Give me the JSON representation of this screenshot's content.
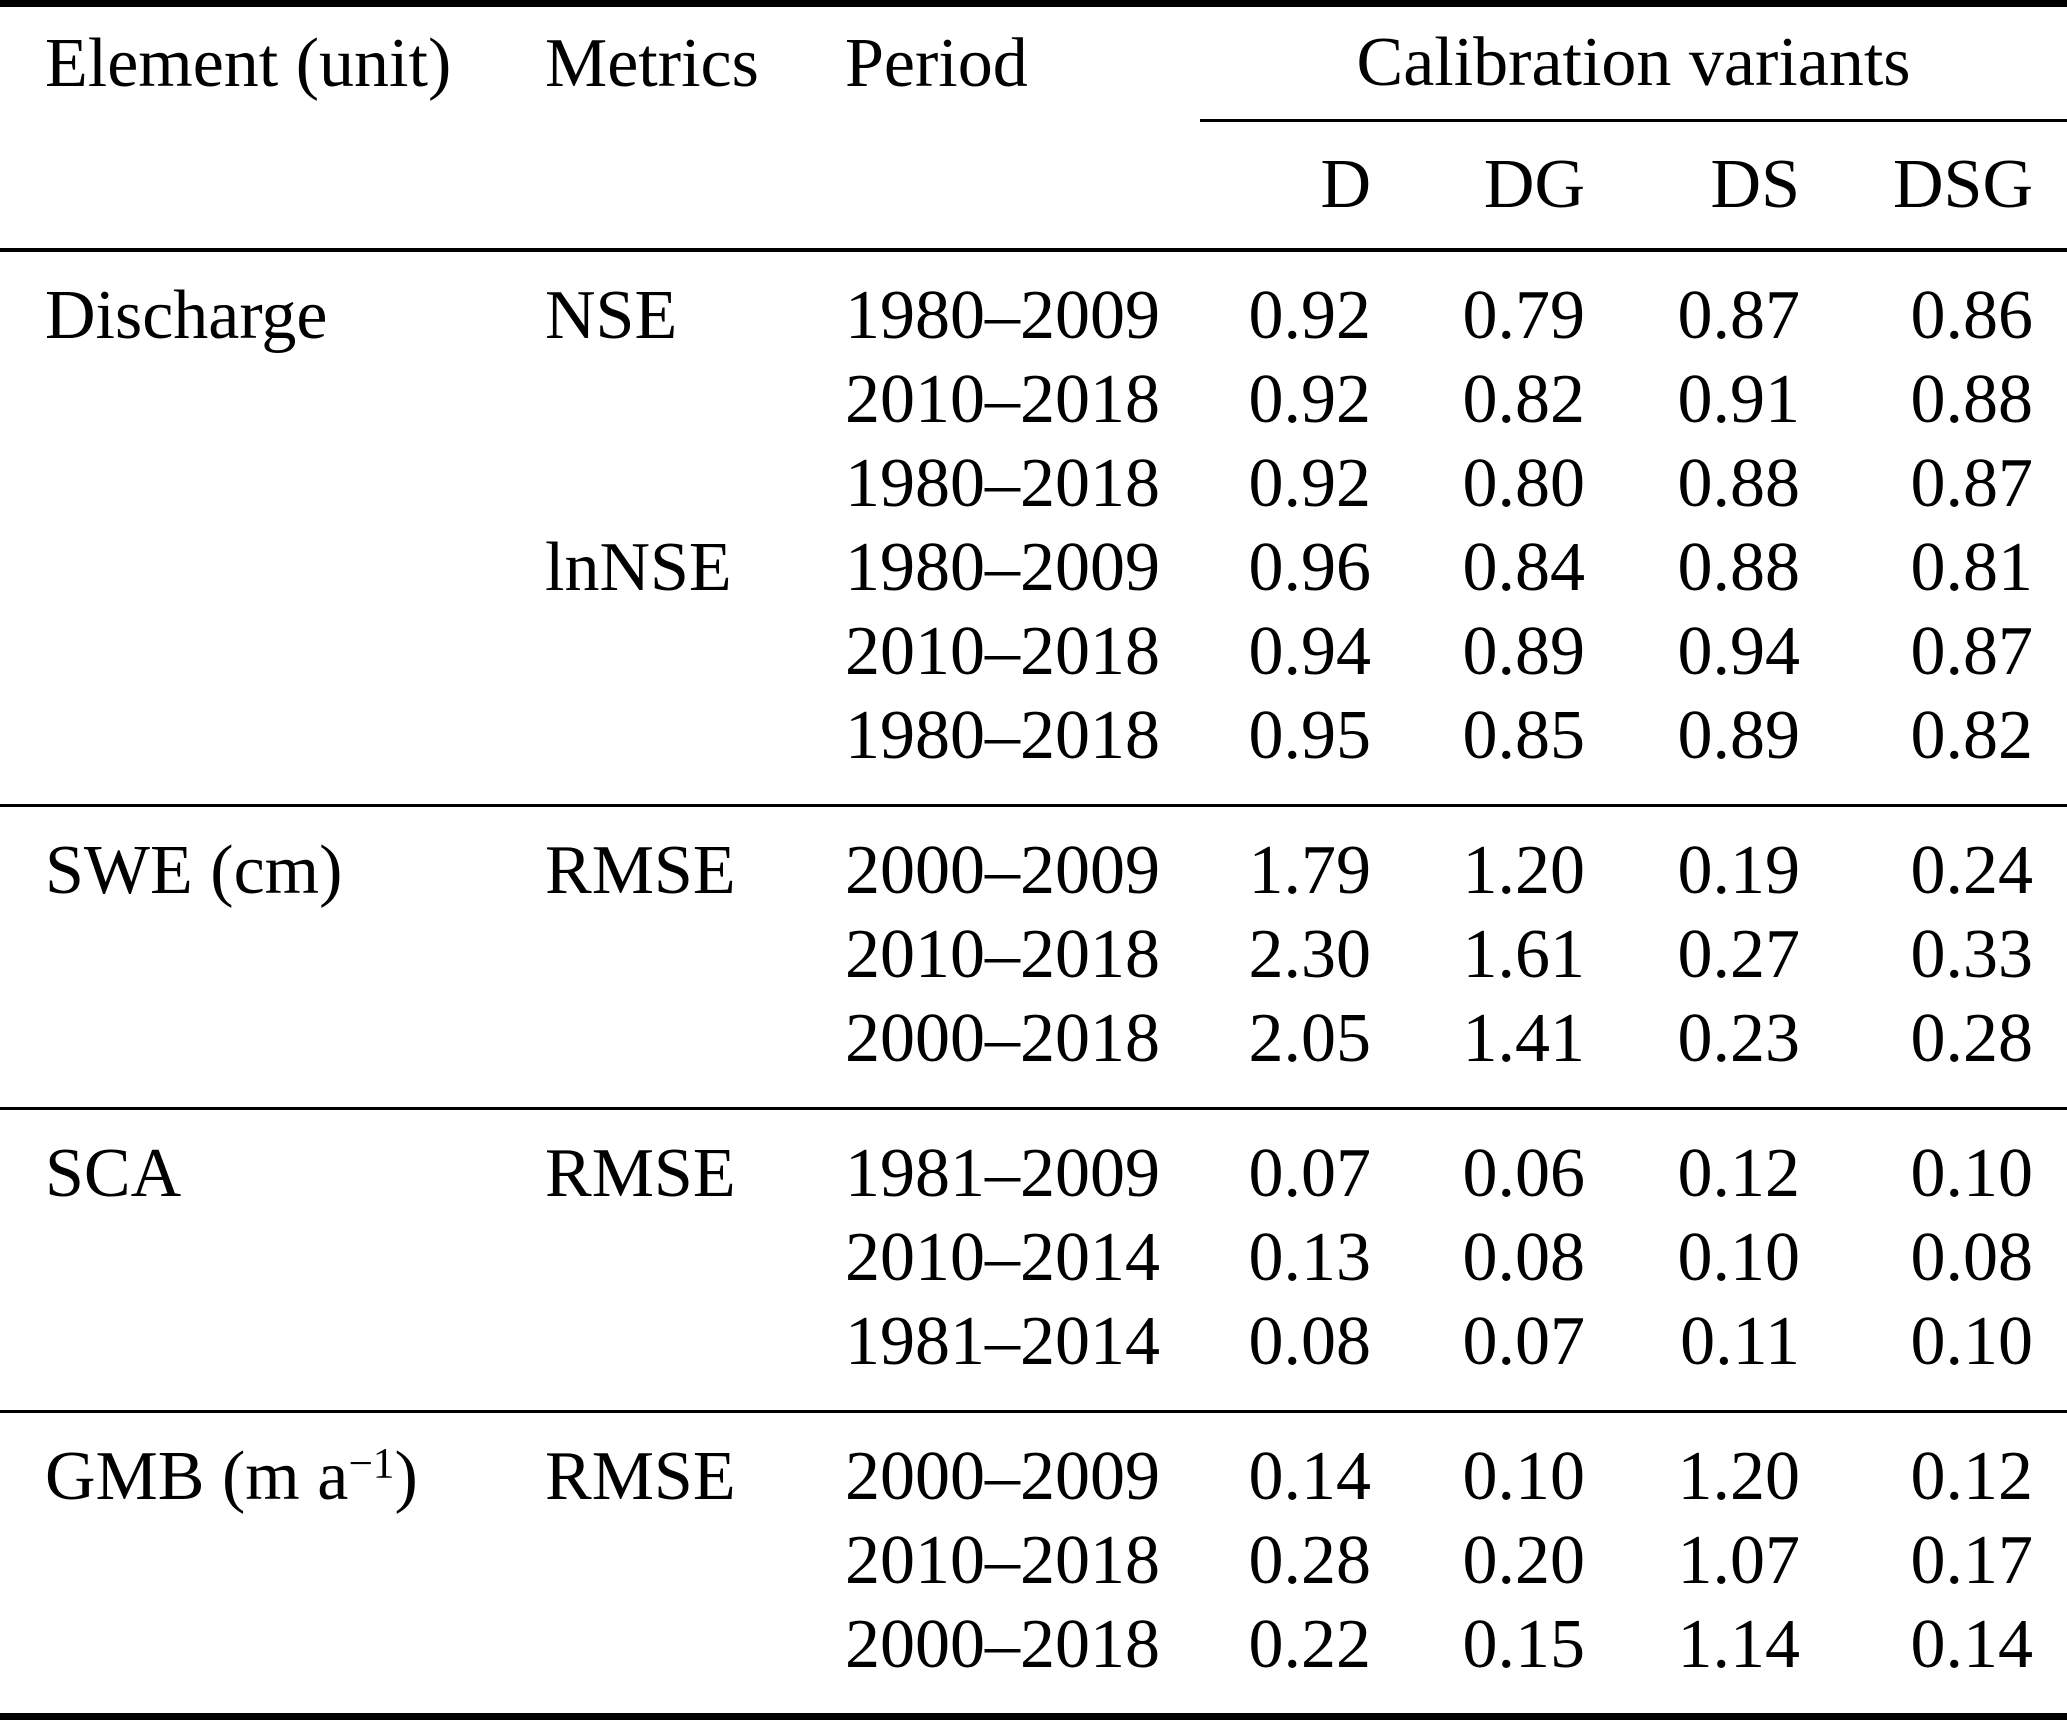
{
  "table": {
    "header": {
      "element": "Element (unit)",
      "metrics": "Metrics",
      "period": "Period",
      "group": "Calibration variants",
      "variants": [
        "D",
        "DG",
        "DS",
        "DSG"
      ]
    },
    "sections": [
      {
        "name": "Discharge",
        "rows": [
          {
            "element": "Discharge",
            "metrics": "NSE",
            "period": "1980–2009",
            "v": [
              "0.92",
              "0.79",
              "0.87",
              "0.86"
            ]
          },
          {
            "period": "2010–2018",
            "v": [
              "0.92",
              "0.82",
              "0.91",
              "0.88"
            ]
          },
          {
            "period": "1980–2018",
            "v": [
              "0.92",
              "0.80",
              "0.88",
              "0.87"
            ]
          },
          {
            "metrics": "lnNSE",
            "period": "1980–2009",
            "v": [
              "0.96",
              "0.84",
              "0.88",
              "0.81"
            ]
          },
          {
            "period": "2010–2018",
            "v": [
              "0.94",
              "0.89",
              "0.94",
              "0.87"
            ]
          },
          {
            "period": "1980–2018",
            "v": [
              "0.95",
              "0.85",
              "0.89",
              "0.82"
            ]
          }
        ]
      },
      {
        "name": "SWE",
        "rows": [
          {
            "element": "SWE (cm)",
            "metrics": "RMSE",
            "period": "2000–2009",
            "v": [
              "1.79",
              "1.20",
              "0.19",
              "0.24"
            ]
          },
          {
            "period": "2010–2018",
            "v": [
              "2.30",
              "1.61",
              "0.27",
              "0.33"
            ]
          },
          {
            "period": "2000–2018",
            "v": [
              "2.05",
              "1.41",
              "0.23",
              "0.28"
            ]
          }
        ]
      },
      {
        "name": "SCA",
        "rows": [
          {
            "element": "SCA",
            "metrics": "RMSE",
            "period": "1981–2009",
            "v": [
              "0.07",
              "0.06",
              "0.12",
              "0.10"
            ]
          },
          {
            "period": "2010–2014",
            "v": [
              "0.13",
              "0.08",
              "0.10",
              "0.08"
            ]
          },
          {
            "period": "1981–2014",
            "v": [
              "0.08",
              "0.07",
              "0.11",
              "0.10"
            ]
          }
        ]
      },
      {
        "name": "GMB",
        "rows": [
          {
            "element_prefix": "GMB (m a",
            "element_sup": "−1",
            "element_suffix": ")",
            "metrics": "RMSE",
            "period": "2000–2009",
            "v": [
              "0.14",
              "0.10",
              "1.20",
              "0.12"
            ]
          },
          {
            "period": "2010–2018",
            "v": [
              "0.28",
              "0.20",
              "1.07",
              "0.17"
            ]
          },
          {
            "period": "2000–2018",
            "v": [
              "0.22",
              "0.15",
              "1.14",
              "0.14"
            ]
          }
        ]
      }
    ]
  }
}
